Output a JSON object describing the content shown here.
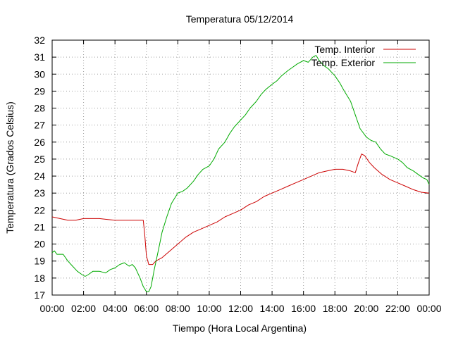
{
  "chart_data": {
    "type": "line",
    "title": "Temperatura 05/12/2014",
    "xlabel": "Tiempo (Hora Local Argentina)",
    "ylabel": "Temperatura (Grados Celsius)",
    "x_ticks": [
      "00:00",
      "02:00",
      "04:00",
      "06:00",
      "08:00",
      "10:00",
      "12:00",
      "14:00",
      "16:00",
      "18:00",
      "20:00",
      "22:00",
      "00:00"
    ],
    "xlim": [
      0,
      24
    ],
    "ylim": [
      17,
      32
    ],
    "y_ticks": [
      17,
      18,
      19,
      20,
      21,
      22,
      23,
      24,
      25,
      26,
      27,
      28,
      29,
      30,
      31,
      32
    ],
    "grid": true,
    "legend_position": "top-right",
    "series": [
      {
        "name": "Temp. Interior",
        "color": "#cc0000",
        "points": [
          [
            0,
            21.6
          ],
          [
            0.5,
            21.5
          ],
          [
            1.0,
            21.4
          ],
          [
            1.5,
            21.4
          ],
          [
            2.0,
            21.5
          ],
          [
            2.5,
            21.5
          ],
          [
            3.0,
            21.5
          ],
          [
            3.5,
            21.45
          ],
          [
            4.0,
            21.4
          ],
          [
            5.0,
            21.4
          ],
          [
            5.8,
            21.4
          ],
          [
            5.9,
            20.5
          ],
          [
            6.0,
            19.3
          ],
          [
            6.15,
            18.8
          ],
          [
            6.4,
            18.8
          ],
          [
            6.6,
            19.0
          ],
          [
            7.0,
            19.2
          ],
          [
            7.5,
            19.6
          ],
          [
            8.0,
            20.0
          ],
          [
            8.5,
            20.4
          ],
          [
            9.0,
            20.7
          ],
          [
            9.5,
            20.9
          ],
          [
            10.0,
            21.1
          ],
          [
            10.5,
            21.3
          ],
          [
            11.0,
            21.6
          ],
          [
            11.5,
            21.8
          ],
          [
            12.0,
            22.0
          ],
          [
            12.5,
            22.3
          ],
          [
            13.0,
            22.5
          ],
          [
            13.5,
            22.8
          ],
          [
            14.0,
            23.0
          ],
          [
            14.5,
            23.2
          ],
          [
            15.0,
            23.4
          ],
          [
            15.5,
            23.6
          ],
          [
            16.0,
            23.8
          ],
          [
            16.5,
            24.0
          ],
          [
            17.0,
            24.2
          ],
          [
            17.5,
            24.3
          ],
          [
            18.0,
            24.4
          ],
          [
            18.5,
            24.4
          ],
          [
            19.0,
            24.3
          ],
          [
            19.3,
            24.2
          ],
          [
            19.5,
            24.8
          ],
          [
            19.7,
            25.3
          ],
          [
            19.9,
            25.2
          ],
          [
            20.2,
            24.8
          ],
          [
            20.5,
            24.5
          ],
          [
            21.0,
            24.1
          ],
          [
            21.5,
            23.8
          ],
          [
            22.0,
            23.6
          ],
          [
            22.5,
            23.4
          ],
          [
            23.0,
            23.2
          ],
          [
            23.5,
            23.05
          ],
          [
            24.0,
            23.0
          ]
        ]
      },
      {
        "name": "Temp. Exterior",
        "color": "#00aa00",
        "points": [
          [
            0,
            19.5
          ],
          [
            0.15,
            19.6
          ],
          [
            0.3,
            19.4
          ],
          [
            0.7,
            19.4
          ],
          [
            1.0,
            19.0
          ],
          [
            1.3,
            18.7
          ],
          [
            1.6,
            18.4
          ],
          [
            1.9,
            18.2
          ],
          [
            2.1,
            18.1
          ],
          [
            2.3,
            18.2
          ],
          [
            2.6,
            18.4
          ],
          [
            3.0,
            18.4
          ],
          [
            3.4,
            18.3
          ],
          [
            3.7,
            18.5
          ],
          [
            4.0,
            18.6
          ],
          [
            4.3,
            18.8
          ],
          [
            4.6,
            18.9
          ],
          [
            4.9,
            18.7
          ],
          [
            5.1,
            18.8
          ],
          [
            5.3,
            18.6
          ],
          [
            5.6,
            18.0
          ],
          [
            5.8,
            17.5
          ],
          [
            6.0,
            17.2
          ],
          [
            6.15,
            17.2
          ],
          [
            6.3,
            17.5
          ],
          [
            6.5,
            18.5
          ],
          [
            6.8,
            19.8
          ],
          [
            7.0,
            20.7
          ],
          [
            7.3,
            21.6
          ],
          [
            7.6,
            22.4
          ],
          [
            8.0,
            23.0
          ],
          [
            8.3,
            23.1
          ],
          [
            8.6,
            23.3
          ],
          [
            9.0,
            23.7
          ],
          [
            9.3,
            24.1
          ],
          [
            9.6,
            24.4
          ],
          [
            10.0,
            24.6
          ],
          [
            10.3,
            25.0
          ],
          [
            10.6,
            25.6
          ],
          [
            11.0,
            26.0
          ],
          [
            11.3,
            26.5
          ],
          [
            11.6,
            26.9
          ],
          [
            12.0,
            27.3
          ],
          [
            12.3,
            27.6
          ],
          [
            12.6,
            28.0
          ],
          [
            13.0,
            28.4
          ],
          [
            13.3,
            28.8
          ],
          [
            13.6,
            29.1
          ],
          [
            14.0,
            29.4
          ],
          [
            14.3,
            29.6
          ],
          [
            14.6,
            29.9
          ],
          [
            15.0,
            30.2
          ],
          [
            15.3,
            30.4
          ],
          [
            15.6,
            30.6
          ],
          [
            16.0,
            30.8
          ],
          [
            16.3,
            30.7
          ],
          [
            16.6,
            31.0
          ],
          [
            16.8,
            31.1
          ],
          [
            17.0,
            30.8
          ],
          [
            17.3,
            30.5
          ],
          [
            17.6,
            30.3
          ],
          [
            18.0,
            29.9
          ],
          [
            18.3,
            29.5
          ],
          [
            18.6,
            29.0
          ],
          [
            19.0,
            28.4
          ],
          [
            19.3,
            27.6
          ],
          [
            19.6,
            26.8
          ],
          [
            20.0,
            26.3
          ],
          [
            20.3,
            26.1
          ],
          [
            20.6,
            26.0
          ],
          [
            20.9,
            25.6
          ],
          [
            21.2,
            25.3
          ],
          [
            21.5,
            25.2
          ],
          [
            22.0,
            25.0
          ],
          [
            22.3,
            24.8
          ],
          [
            22.6,
            24.5
          ],
          [
            23.0,
            24.3
          ],
          [
            23.3,
            24.1
          ],
          [
            23.6,
            23.9
          ],
          [
            23.85,
            23.8
          ],
          [
            24.0,
            23.5
          ]
        ]
      }
    ]
  }
}
